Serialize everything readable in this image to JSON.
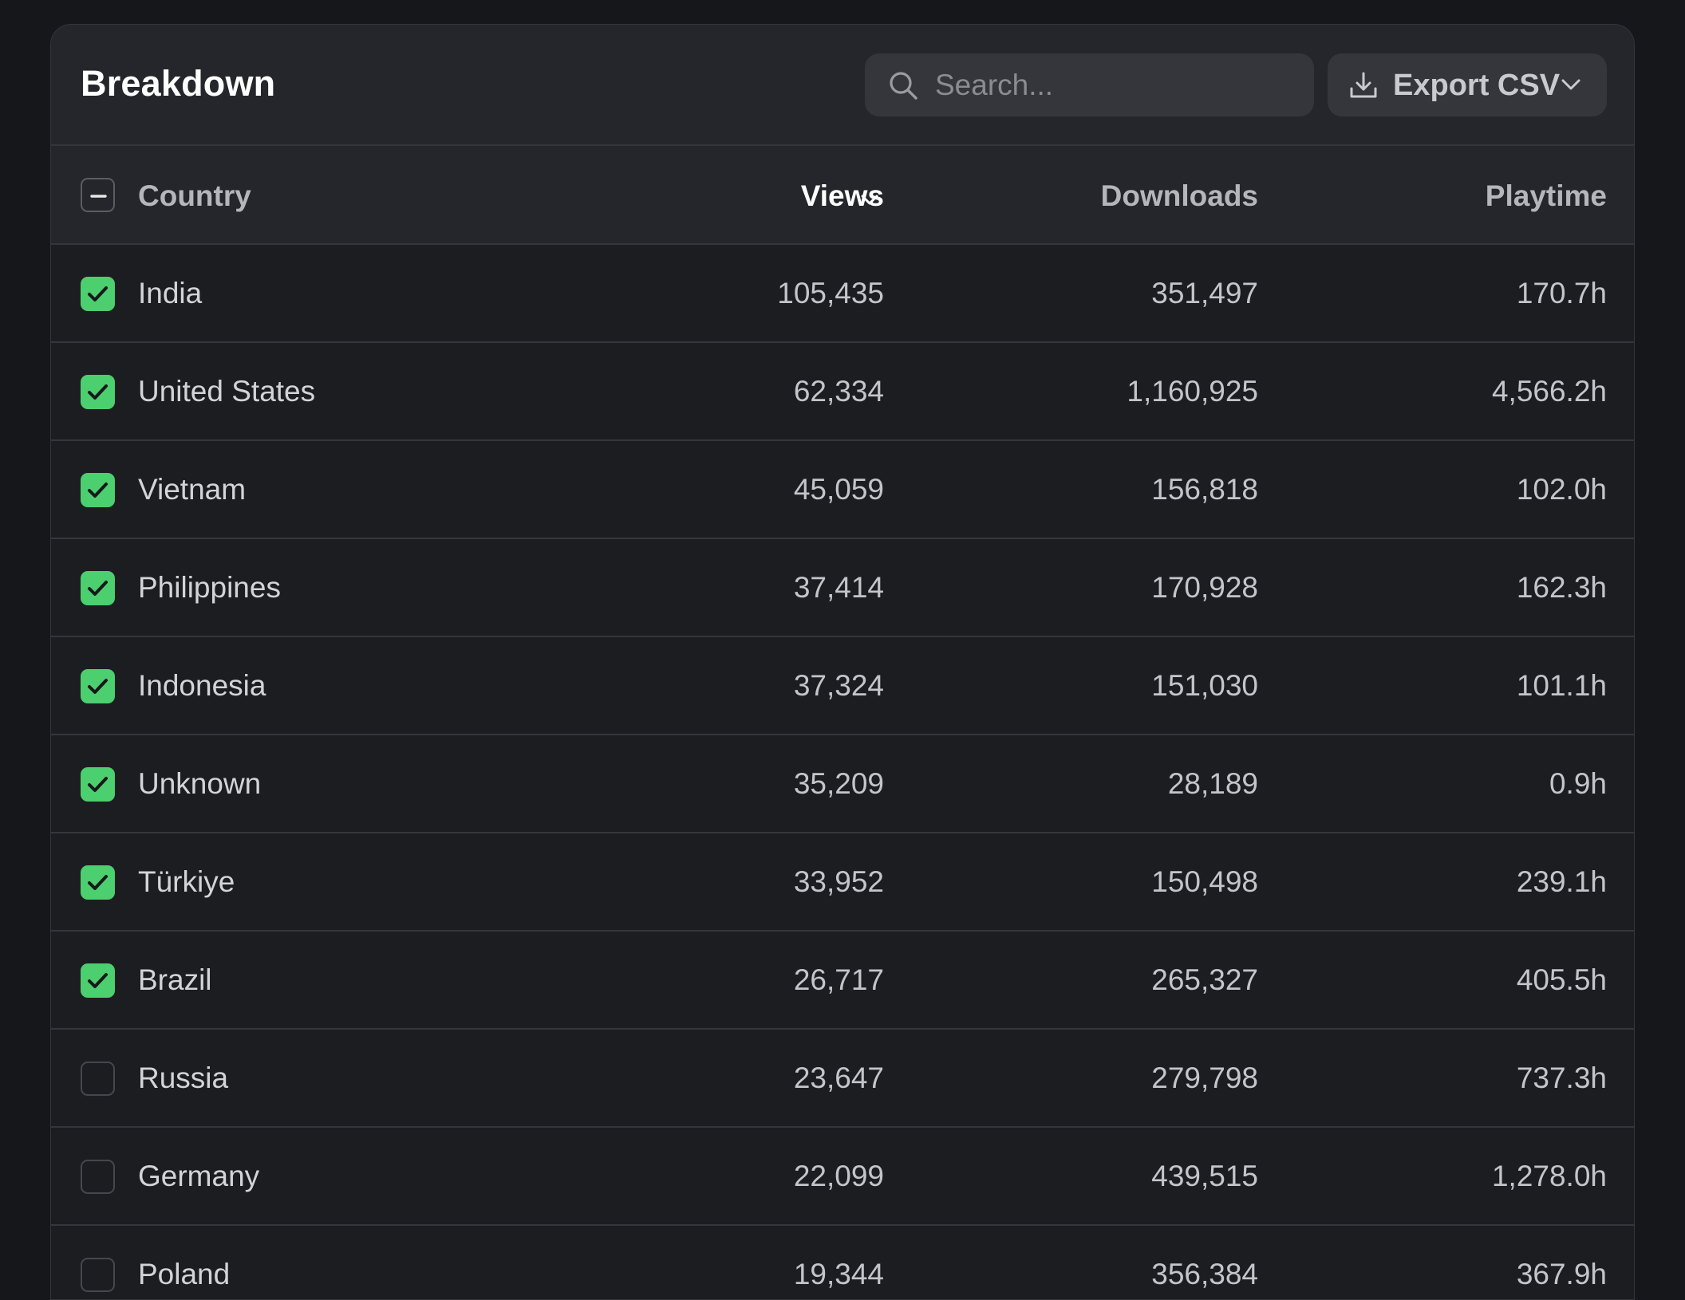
{
  "panel": {
    "title": "Breakdown",
    "search_placeholder": "Search...",
    "search_value": "",
    "export_label": "Export CSV"
  },
  "table": {
    "headers": {
      "country": "Country",
      "views": "Views",
      "downloads": "Downloads",
      "playtime": "Playtime"
    },
    "select_all_state": "indeterminate",
    "sort_column": "views",
    "sort_direction": "desc",
    "rows": [
      {
        "country": "India",
        "views": "105,435",
        "downloads": "351,497",
        "playtime": "170.7h",
        "checked": true
      },
      {
        "country": "United States",
        "views": "62,334",
        "downloads": "1,160,925",
        "playtime": "4,566.2h",
        "checked": true
      },
      {
        "country": "Vietnam",
        "views": "45,059",
        "downloads": "156,818",
        "playtime": "102.0h",
        "checked": true
      },
      {
        "country": "Philippines",
        "views": "37,414",
        "downloads": "170,928",
        "playtime": "162.3h",
        "checked": true
      },
      {
        "country": "Indonesia",
        "views": "37,324",
        "downloads": "151,030",
        "playtime": "101.1h",
        "checked": true
      },
      {
        "country": "Unknown",
        "views": "35,209",
        "downloads": "28,189",
        "playtime": "0.9h",
        "checked": true
      },
      {
        "country": "Türkiye",
        "views": "33,952",
        "downloads": "150,498",
        "playtime": "239.1h",
        "checked": true
      },
      {
        "country": "Brazil",
        "views": "26,717",
        "downloads": "265,327",
        "playtime": "405.5h",
        "checked": true
      },
      {
        "country": "Russia",
        "views": "23,647",
        "downloads": "279,798",
        "playtime": "737.3h",
        "checked": false
      },
      {
        "country": "Germany",
        "views": "22,099",
        "downloads": "439,515",
        "playtime": "1,278.0h",
        "checked": false
      },
      {
        "country": "Poland",
        "views": "19,344",
        "downloads": "356,384",
        "playtime": "367.9h",
        "checked": false
      }
    ]
  },
  "colors": {
    "checkbox_checked": "#4ccf6e",
    "background": "#16171b",
    "panel": "#1c1d21",
    "header": "#25262b"
  },
  "icons": {
    "search": "search-icon",
    "export": "download-icon",
    "dropdown": "chevron-down-icon",
    "check": "check-icon",
    "minus": "minus-icon"
  }
}
